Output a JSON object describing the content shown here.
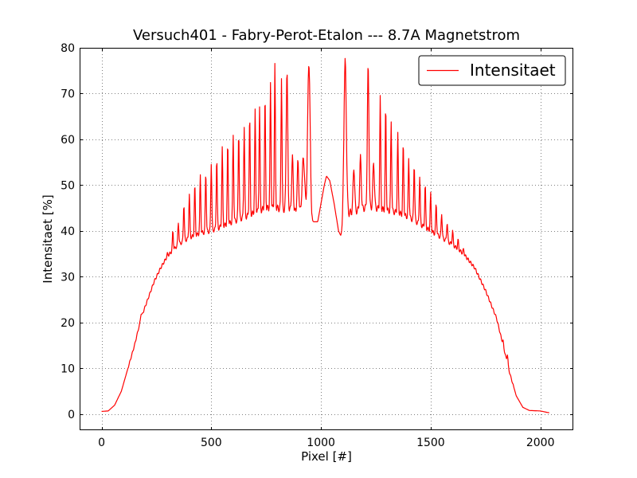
{
  "chart_data": {
    "type": "line",
    "title": "Versuch401 - Fabry-Perot-Etalon --- 8.7A Magnetstrom",
    "xlabel": "Pixel [#]",
    "ylabel": "Intensitaet [%]",
    "xlim": [
      -100,
      2150
    ],
    "ylim": [
      -3.5,
      80
    ],
    "xticks": [
      0,
      500,
      1000,
      1500,
      2000
    ],
    "yticks": [
      0,
      10,
      20,
      30,
      40,
      50,
      60,
      70,
      80
    ],
    "xtick_labels": [
      "0",
      "500",
      "1000",
      "1500",
      "2000"
    ],
    "ytick_labels": [
      "0",
      "10",
      "20",
      "30",
      "40",
      "50",
      "60",
      "70",
      "80"
    ],
    "grid": true,
    "legend": {
      "position": "top-right",
      "entries": [
        "Intensitaet"
      ]
    },
    "series": [
      {
        "name": "Intensitaet",
        "color": "#ff0000",
        "points": [
          [
            0,
            0.6
          ],
          [
            30,
            0.7
          ],
          [
            60,
            2
          ],
          [
            90,
            5
          ],
          [
            120,
            10
          ],
          [
            150,
            15
          ],
          [
            180,
            21
          ],
          [
            210,
            25
          ],
          [
            240,
            29
          ],
          [
            270,
            32
          ],
          [
            300,
            34.5
          ],
          [
            350,
            37
          ],
          [
            400,
            38.5
          ],
          [
            450,
            39.5
          ],
          [
            500,
            40
          ],
          [
            550,
            41
          ],
          [
            600,
            42
          ],
          [
            650,
            43
          ],
          [
            700,
            44
          ],
          [
            750,
            45
          ],
          [
            800,
            45
          ],
          [
            850,
            44.5
          ],
          [
            900,
            44
          ],
          [
            940,
            43.5
          ],
          [
            960,
            42
          ],
          [
            985,
            42
          ],
          [
            1000,
            46
          ],
          [
            1015,
            50
          ],
          [
            1025,
            52
          ],
          [
            1040,
            51
          ],
          [
            1060,
            46
          ],
          [
            1080,
            40
          ],
          [
            1090,
            39
          ],
          [
            1110,
            41
          ],
          [
            1130,
            44
          ],
          [
            1170,
            44.5
          ],
          [
            1200,
            45
          ],
          [
            1250,
            45
          ],
          [
            1300,
            44.5
          ],
          [
            1350,
            44
          ],
          [
            1400,
            43
          ],
          [
            1450,
            41.5
          ],
          [
            1500,
            40
          ],
          [
            1550,
            38.5
          ],
          [
            1600,
            37
          ],
          [
            1650,
            35
          ],
          [
            1700,
            32
          ],
          [
            1750,
            27
          ],
          [
            1800,
            21
          ],
          [
            1830,
            15
          ],
          [
            1860,
            9
          ],
          [
            1890,
            4
          ],
          [
            1920,
            1.5
          ],
          [
            1950,
            0.8
          ],
          [
            2000,
            0.7
          ],
          [
            2040,
            0.3
          ]
        ],
        "peaks": [
          [
            180,
            22
          ],
          [
            210,
            24
          ],
          [
            240,
            29
          ],
          [
            270,
            32
          ],
          [
            300,
            35
          ],
          [
            325,
            40
          ],
          [
            350,
            42
          ],
          [
            375,
            46
          ],
          [
            400,
            48
          ],
          [
            425,
            50
          ],
          [
            450,
            52
          ],
          [
            475,
            53
          ],
          [
            500,
            55
          ],
          [
            525,
            56
          ],
          [
            550,
            58
          ],
          [
            575,
            59
          ],
          [
            600,
            61
          ],
          [
            625,
            62
          ],
          [
            650,
            63
          ],
          [
            675,
            65
          ],
          [
            700,
            66
          ],
          [
            720,
            67
          ],
          [
            745,
            69
          ],
          [
            770,
            72
          ],
          [
            790,
            76
          ],
          [
            820,
            74
          ],
          [
            845,
            75
          ],
          [
            870,
            56
          ],
          [
            895,
            55
          ],
          [
            920,
            56
          ],
          [
            945,
            77
          ],
          [
            1110,
            77
          ],
          [
            1150,
            54
          ],
          [
            1180,
            56
          ],
          [
            1215,
            76
          ],
          [
            1240,
            55
          ],
          [
            1270,
            69
          ],
          [
            1295,
            67
          ],
          [
            1320,
            64
          ],
          [
            1350,
            61
          ],
          [
            1375,
            59
          ],
          [
            1400,
            56
          ],
          [
            1425,
            55
          ],
          [
            1450,
            52
          ],
          [
            1475,
            50
          ],
          [
            1500,
            48
          ],
          [
            1525,
            46
          ],
          [
            1550,
            44
          ],
          [
            1575,
            42
          ],
          [
            1600,
            40
          ],
          [
            1625,
            38
          ],
          [
            1650,
            36
          ],
          [
            1675,
            33
          ],
          [
            1700,
            31
          ],
          [
            1725,
            28
          ],
          [
            1750,
            25
          ],
          [
            1780,
            22
          ],
          [
            1800,
            20
          ],
          [
            1830,
            16
          ],
          [
            1850,
            13
          ]
        ]
      }
    ]
  }
}
